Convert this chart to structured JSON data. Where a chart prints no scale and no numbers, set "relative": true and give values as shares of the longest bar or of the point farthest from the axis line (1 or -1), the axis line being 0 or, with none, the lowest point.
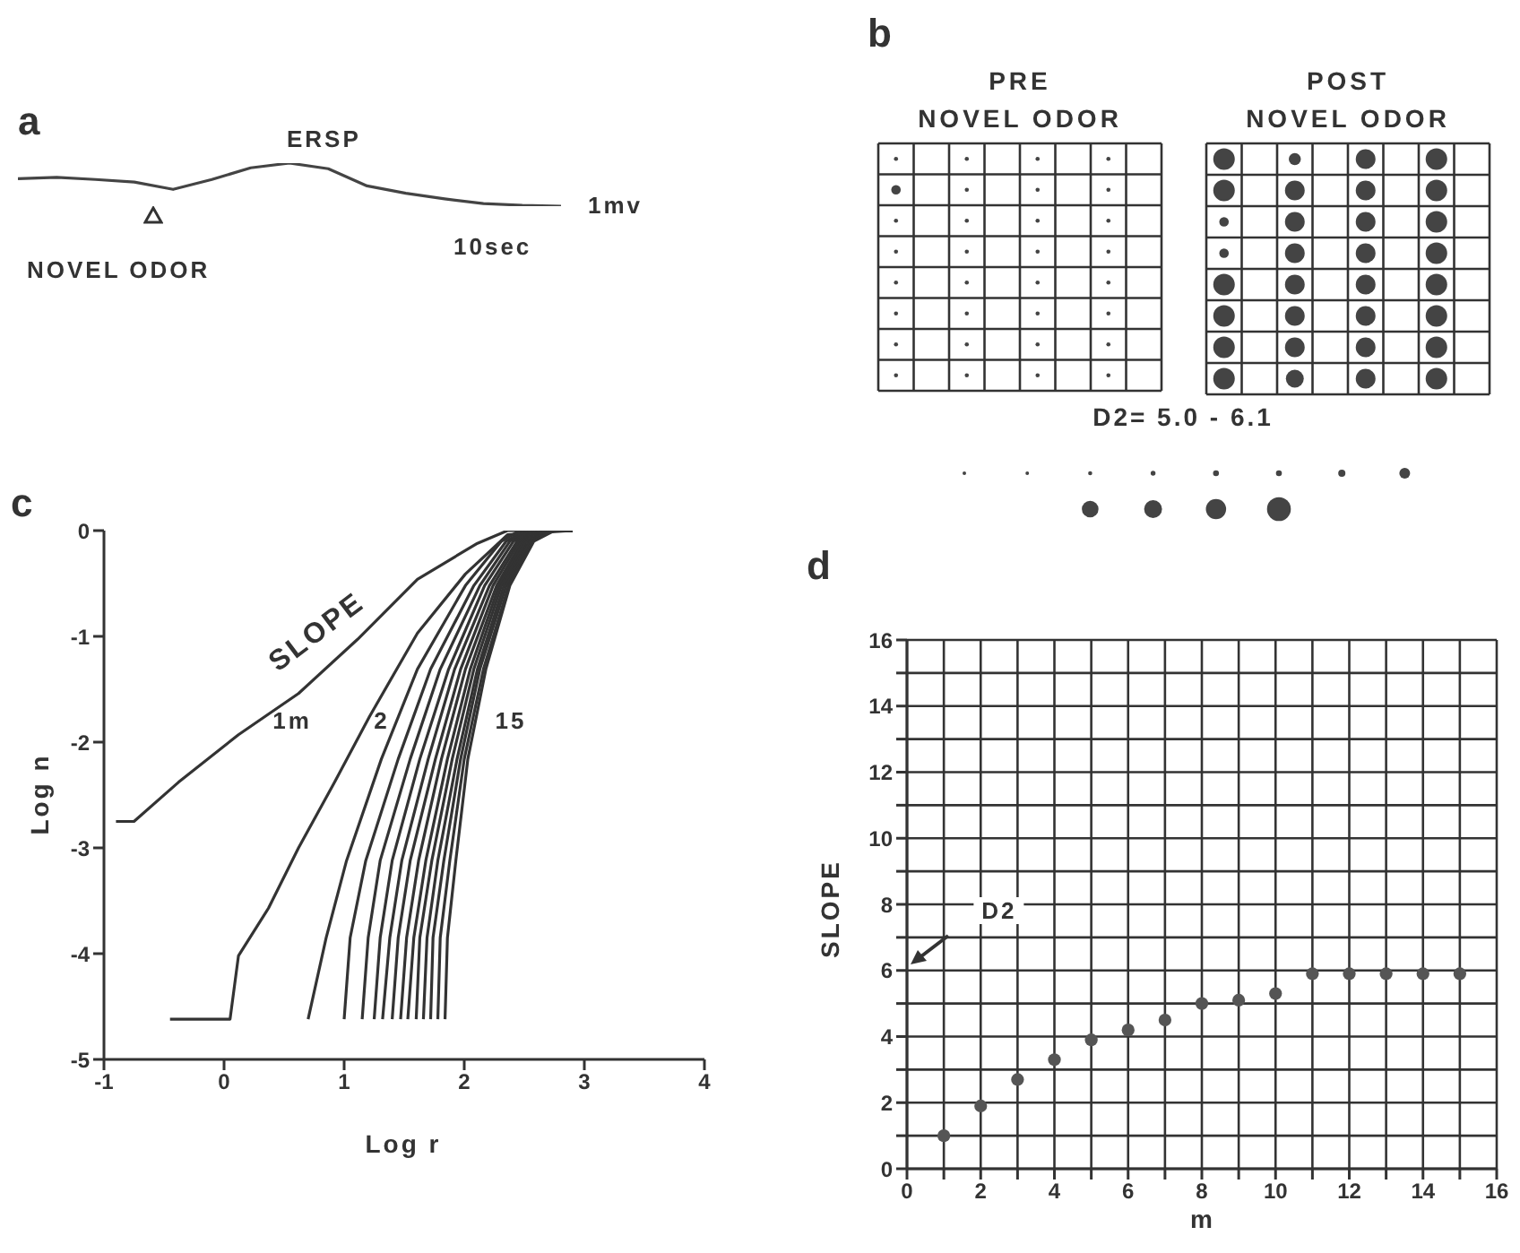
{
  "chart_data": [
    {
      "type": "line",
      "relative": true,
      "annotations": [
        "a",
        "ERSP",
        "NOVEL ODOR",
        "1mv",
        "10sec"
      ],
      "categories": [
        null,
        null,
        null,
        null,
        null,
        null,
        null,
        null,
        null,
        null,
        null,
        null,
        null,
        null,
        null
      ],
      "series": [
        {
          "color": "#444444",
          "values": [
            0.64,
            0.67,
            0.62,
            0.56,
            0.39,
            0.62,
            0.89,
            1,
            0.87,
            0.47,
            0.3,
            0.17,
            0.06,
            0.02,
            0
          ]
        }
      ]
    },
    {
      "type": "other",
      "annotations": [
        "b",
        "PRE\nNOVEL ODOR",
        "POST\nNOVEL ODOR",
        "D2= 5.0 - 6.1"
      ]
    },
    {
      "type": "line",
      "annotations": [
        "c",
        "SLOPE",
        "1m",
        "2",
        "15"
      ],
      "xlabel": "Log r",
      "ylabel": "Log n",
      "xlim": [
        -1,
        4
      ],
      "ylim": [
        -5,
        0
      ],
      "xticks": [
        -1,
        0,
        1,
        2,
        3,
        4
      ],
      "yticks": [
        -5,
        -4,
        -3,
        -2,
        -1,
        0
      ],
      "series": [
        {
          "color": "#333333",
          "x": [
            -0.9,
            -0.75,
            -0.38,
            0.12,
            0.62,
            1.11,
            1.61,
            2.11,
            2.36,
            2.9
          ],
          "values": [
            -2.75,
            -2.75,
            -2.38,
            -1.93,
            -1.54,
            -1.03,
            -0.46,
            -0.12,
            0,
            0
          ]
        },
        {
          "color": "#333333",
          "x": [
            -0.45,
            0.05,
            0.12,
            0.37,
            0.62,
            0.92,
            1.21,
            1.61,
            2.01,
            2.36,
            2.9
          ],
          "values": [
            -4.62,
            -4.62,
            -4.02,
            -3.57,
            -3.0,
            -2.38,
            -1.76,
            -0.97,
            -0.41,
            -0.04,
            0
          ]
        },
        {
          "color": "#333333",
          "x": [
            0.7,
            0.85,
            1.02,
            1.31,
            1.61,
            2.01,
            2.31,
            2.46,
            2.9
          ],
          "values": [
            -4.62,
            -3.85,
            -3.12,
            -2.16,
            -1.31,
            -0.52,
            -0.1,
            0,
            0
          ]
        },
        {
          "color": "#333333",
          "x": [
            1.0,
            1.05,
            1.18,
            1.45,
            1.72,
            2.08,
            2.35,
            2.5,
            2.9
          ],
          "values": [
            -4.62,
            -3.85,
            -3.12,
            -2.16,
            -1.31,
            -0.52,
            -0.1,
            0,
            0
          ]
        },
        {
          "color": "#333333",
          "x": [
            1.15,
            1.2,
            1.3,
            1.55,
            1.8,
            2.13,
            2.38,
            2.53,
            2.9
          ],
          "values": [
            -4.62,
            -3.85,
            -3.12,
            -2.16,
            -1.31,
            -0.52,
            -0.1,
            0,
            0
          ]
        },
        {
          "color": "#333333",
          "x": [
            1.25,
            1.3,
            1.4,
            1.63,
            1.87,
            2.17,
            2.41,
            2.56,
            2.9
          ],
          "values": [
            -4.62,
            -3.85,
            -3.12,
            -2.16,
            -1.31,
            -0.52,
            -0.1,
            0,
            0
          ]
        },
        {
          "color": "#333333",
          "x": [
            1.32,
            1.38,
            1.48,
            1.7,
            1.92,
            2.21,
            2.44,
            2.59,
            2.9
          ],
          "values": [
            -4.62,
            -3.85,
            -3.12,
            -2.16,
            -1.31,
            -0.52,
            -0.1,
            0,
            0
          ]
        },
        {
          "color": "#333333",
          "x": [
            1.4,
            1.45,
            1.55,
            1.76,
            1.97,
            2.24,
            2.46,
            2.61,
            2.9
          ],
          "values": [
            -4.62,
            -3.85,
            -3.12,
            -2.16,
            -1.31,
            -0.52,
            -0.1,
            0,
            0
          ]
        },
        {
          "color": "#333333",
          "x": [
            1.47,
            1.52,
            1.62,
            1.81,
            2.01,
            2.27,
            2.48,
            2.63,
            2.9
          ],
          "values": [
            -4.62,
            -3.85,
            -3.12,
            -2.16,
            -1.31,
            -0.52,
            -0.1,
            0,
            0
          ]
        },
        {
          "color": "#333333",
          "x": [
            1.53,
            1.58,
            1.68,
            1.86,
            2.05,
            2.29,
            2.5,
            2.65,
            2.9
          ],
          "values": [
            -4.62,
            -3.85,
            -3.12,
            -2.16,
            -1.31,
            -0.52,
            -0.1,
            0,
            0
          ]
        },
        {
          "color": "#333333",
          "x": [
            1.6,
            1.63,
            1.73,
            1.9,
            2.08,
            2.31,
            2.52,
            2.67,
            2.9
          ],
          "values": [
            -4.62,
            -3.85,
            -3.12,
            -2.16,
            -1.31,
            -0.52,
            -0.1,
            0,
            0
          ]
        },
        {
          "color": "#333333",
          "x": [
            1.66,
            1.69,
            1.78,
            1.94,
            2.11,
            2.33,
            2.54,
            2.69,
            2.9
          ],
          "values": [
            -4.62,
            -3.85,
            -3.12,
            -2.16,
            -1.31,
            -0.52,
            -0.1,
            0,
            0
          ]
        },
        {
          "color": "#333333",
          "x": [
            1.72,
            1.74,
            1.83,
            1.97,
            2.13,
            2.35,
            2.55,
            2.71,
            2.9
          ],
          "values": [
            -4.62,
            -3.85,
            -3.12,
            -2.16,
            -1.31,
            -0.52,
            -0.1,
            0,
            0
          ]
        },
        {
          "color": "#333333",
          "x": [
            1.78,
            1.8,
            1.88,
            2.0,
            2.16,
            2.37,
            2.57,
            2.73,
            2.9
          ],
          "values": [
            -4.62,
            -3.85,
            -3.12,
            -2.16,
            -1.31,
            -0.52,
            -0.1,
            0,
            0
          ]
        },
        {
          "color": "#333333",
          "x": [
            1.84,
            1.86,
            1.93,
            2.03,
            2.18,
            2.38,
            2.58,
            2.75,
            2.9
          ],
          "values": [
            -4.62,
            -3.85,
            -3.12,
            -2.16,
            -1.31,
            -0.52,
            -0.1,
            0,
            0
          ]
        }
      ]
    },
    {
      "type": "scatter",
      "annotations": [
        "d",
        {
          "text": "D2",
          "x": 2.5,
          "y": 7.8
        }
      ],
      "xlabel": "m",
      "ylabel": "SLOPE",
      "xlim": [
        0,
        16
      ],
      "ylim": [
        0,
        16
      ],
      "xticks": [
        0,
        {
          "value": 1,
          "label": null
        },
        2,
        {
          "value": 3,
          "label": null
        },
        4,
        {
          "value": 5,
          "label": null
        },
        6,
        {
          "value": 7,
          "label": null
        },
        8,
        {
          "value": 9,
          "label": null
        },
        10,
        {
          "value": 11,
          "label": null
        },
        12,
        {
          "value": 13,
          "label": null
        },
        14,
        {
          "value": 15,
          "label": null
        },
        16
      ],
      "yticks": [
        0,
        {
          "value": 1,
          "label": null
        },
        2,
        {
          "value": 3,
          "label": null
        },
        4,
        {
          "value": 5,
          "label": null
        },
        6,
        {
          "value": 7,
          "label": null
        },
        8,
        {
          "value": 9,
          "label": null
        },
        10,
        {
          "value": 11,
          "label": null
        },
        12,
        {
          "value": 13,
          "label": null
        },
        14,
        {
          "value": 15,
          "label": null
        },
        16
      ],
      "grid": true,
      "marker": "circle",
      "x": [
        1,
        2,
        3,
        4,
        5,
        6,
        7,
        8,
        9,
        10,
        11,
        12,
        13,
        14,
        15
      ],
      "series": [
        {
          "color": "#555555",
          "values": [
            1,
            1.9,
            2.7,
            3.3,
            3.9,
            4.2,
            4.5,
            5,
            5.1,
            5.3,
            5.9,
            5.9,
            5.9,
            5.9,
            5.9
          ]
        }
      ]
    }
  ]
}
